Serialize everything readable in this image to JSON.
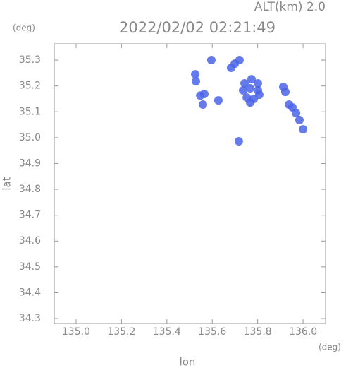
{
  "chart_data": {
    "type": "scatter",
    "title": "2022/02/02 02:21:49",
    "subtitle": "ALT(km) 2.0",
    "y_unit": "(deg)",
    "x_unit": "(deg)",
    "x_label": "lon",
    "y_label": "lat",
    "xlim": [
      134.904,
      136.099
    ],
    "ylim": [
      34.281,
      35.363
    ],
    "xticks": [
      {
        "value": 135.0,
        "label": "135.0"
      },
      135.2,
      135.4,
      135.6,
      135.8,
      {
        "value": 136.0,
        "label": "136.0"
      }
    ],
    "yticks": [
      34.3,
      34.4,
      34.5,
      34.6,
      34.7,
      34.8,
      34.9,
      {
        "value": 35.0,
        "label": "35.0"
      },
      35.1,
      35.2,
      35.3
    ],
    "series": [
      {
        "color": "#4a63e8",
        "x": [
          135.742,
          135.773,
          135.801,
          135.736,
          135.767,
          135.801,
          135.752,
          135.783,
          135.807,
          135.767,
          135.72,
          135.699,
          135.683,
          135.525,
          135.528,
          135.547,
          135.565,
          135.596,
          135.627,
          135.913,
          135.922,
          135.938,
          135.953,
          135.969,
          135.984,
          136.0,
          135.717,
          135.559
        ],
        "values": [
          35.21,
          35.226,
          35.21,
          35.183,
          35.191,
          35.183,
          35.155,
          35.15,
          35.166,
          35.136,
          35.3,
          35.286,
          35.27,
          35.245,
          35.218,
          35.163,
          35.169,
          35.3,
          35.144,
          35.196,
          35.177,
          35.128,
          35.117,
          35.095,
          35.068,
          35.032,
          34.986,
          35.128
        ]
      }
    ]
  }
}
